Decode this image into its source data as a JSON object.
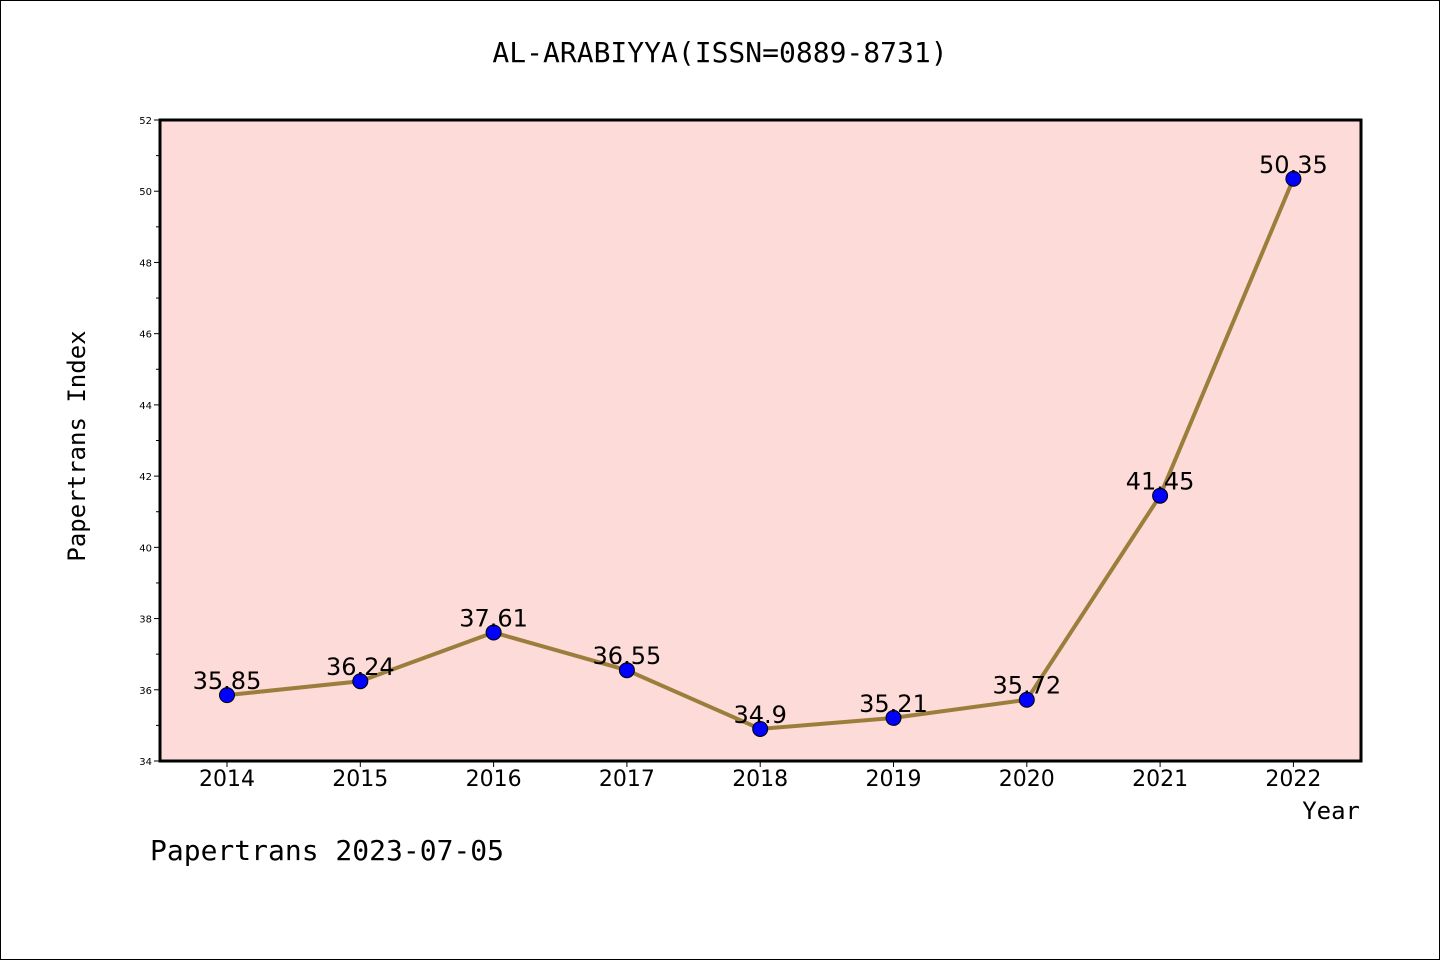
{
  "title": "AL-ARABIYYA(ISSN=0889-8731)",
  "footer": "Papertrans 2023-07-05",
  "colors": {
    "plot_background": "#fddbd8",
    "line": "#9c7e3c",
    "marker": "#0000ff"
  },
  "chart_data": {
    "type": "line",
    "title": "AL-ARABIYYA(ISSN=0889-8731)",
    "xlabel": "Year",
    "ylabel": "Papertrans Index",
    "categories": [
      "2014",
      "2015",
      "2016",
      "2017",
      "2018",
      "2019",
      "2020",
      "2021",
      "2022"
    ],
    "values": [
      35.85,
      36.24,
      37.61,
      36.55,
      34.9,
      35.21,
      35.72,
      41.45,
      50.35
    ],
    "data_labels": [
      "35.85",
      "36.24",
      "37.61",
      "36.55",
      "34.9",
      "35.21",
      "35.72",
      "41.45",
      "50.35"
    ],
    "ylim": [
      34,
      52
    ],
    "yticks": [
      34,
      36,
      38,
      40,
      42,
      44,
      46,
      48,
      50,
      52
    ],
    "grid": false,
    "legend": "none"
  }
}
